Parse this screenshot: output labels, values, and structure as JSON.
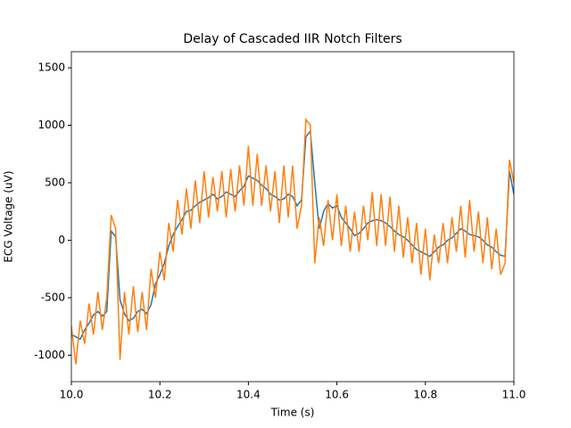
{
  "chart_data": {
    "type": "line",
    "title": "Delay of Cascaded IIR Notch Filters",
    "xlabel": "Time (s)",
    "ylabel": "ECG Voltage (uV)",
    "x": [
      10.0,
      10.01,
      10.02,
      10.03,
      10.04,
      10.05,
      10.06,
      10.07,
      10.08,
      10.09,
      10.1,
      10.11,
      10.12,
      10.13,
      10.14,
      10.15,
      10.16,
      10.17,
      10.18,
      10.19,
      10.2,
      10.21,
      10.22,
      10.23,
      10.24,
      10.25,
      10.26,
      10.27,
      10.28,
      10.29,
      10.3,
      10.31,
      10.32,
      10.33,
      10.34,
      10.35,
      10.36,
      10.37,
      10.38,
      10.39,
      10.4,
      10.41,
      10.42,
      10.43,
      10.44,
      10.45,
      10.46,
      10.47,
      10.48,
      10.49,
      10.5,
      10.51,
      10.52,
      10.53,
      10.54,
      10.55,
      10.56,
      10.57,
      10.58,
      10.59,
      10.6,
      10.61,
      10.62,
      10.63,
      10.64,
      10.65,
      10.66,
      10.67,
      10.68,
      10.69,
      10.7,
      10.71,
      10.72,
      10.73,
      10.74,
      10.75,
      10.76,
      10.77,
      10.78,
      10.79,
      10.8,
      10.81,
      10.82,
      10.83,
      10.84,
      10.85,
      10.86,
      10.87,
      10.88,
      10.89,
      10.9,
      10.91,
      10.92,
      10.93,
      10.94,
      10.95,
      10.96,
      10.97,
      10.98,
      10.99,
      11.0
    ],
    "series": [
      {
        "color": "#1f77b4",
        "values": [
          -820,
          -840,
          -860,
          -780,
          -720,
          -650,
          -620,
          -660,
          -620,
          80,
          30,
          -520,
          -640,
          -700,
          -680,
          -620,
          -600,
          -640,
          -560,
          -380,
          -300,
          -200,
          -50,
          50,
          120,
          180,
          250,
          260,
          300,
          330,
          350,
          370,
          400,
          360,
          380,
          420,
          400,
          380,
          430,
          470,
          560,
          540,
          520,
          480,
          450,
          400,
          380,
          350,
          360,
          400,
          380,
          300,
          350,
          900,
          950,
          500,
          100,
          250,
          320,
          280,
          300,
          200,
          150,
          100,
          40,
          60,
          100,
          150,
          170,
          180,
          170,
          150,
          120,
          80,
          50,
          30,
          0,
          -40,
          -80,
          -100,
          -120,
          -140,
          -100,
          -60,
          -40,
          0,
          20,
          60,
          100,
          80,
          50,
          40,
          30,
          0,
          -40,
          -60,
          -100,
          -130,
          -140,
          600,
          400
        ]
      },
      {
        "color": "#ff7f0e",
        "values": [
          -750,
          -1080,
          -700,
          -900,
          -550,
          -820,
          -450,
          -780,
          -500,
          220,
          100,
          -1040,
          -450,
          -820,
          -400,
          -800,
          -450,
          -780,
          -250,
          -500,
          -100,
          -350,
          150,
          -100,
          350,
          50,
          450,
          100,
          520,
          150,
          600,
          200,
          550,
          250,
          600,
          200,
          620,
          250,
          650,
          300,
          820,
          300,
          750,
          300,
          650,
          250,
          600,
          150,
          650,
          200,
          650,
          100,
          300,
          1050,
          1000,
          -200,
          200,
          -50,
          350,
          0,
          400,
          -50,
          300,
          -100,
          250,
          -100,
          300,
          0,
          420,
          -50,
          400,
          -50,
          380,
          -100,
          300,
          -150,
          200,
          -200,
          150,
          -300,
          100,
          -350,
          50,
          -200,
          150,
          -200,
          200,
          -100,
          300,
          -150,
          350,
          -100,
          250,
          -200,
          200,
          -250,
          100,
          -300,
          -200,
          700,
          500
        ]
      }
    ],
    "xlim": [
      10.0,
      11.0
    ],
    "xticks": [
      {
        "value": 10.0,
        "label": "10.0"
      },
      10.2,
      10.4,
      10.6,
      10.8,
      {
        "value": 11.0,
        "label": "11.0"
      }
    ],
    "ylim": [
      -1230,
      1640
    ],
    "yticks": [
      -1000,
      -500,
      0,
      500,
      1000,
      1500
    ]
  }
}
